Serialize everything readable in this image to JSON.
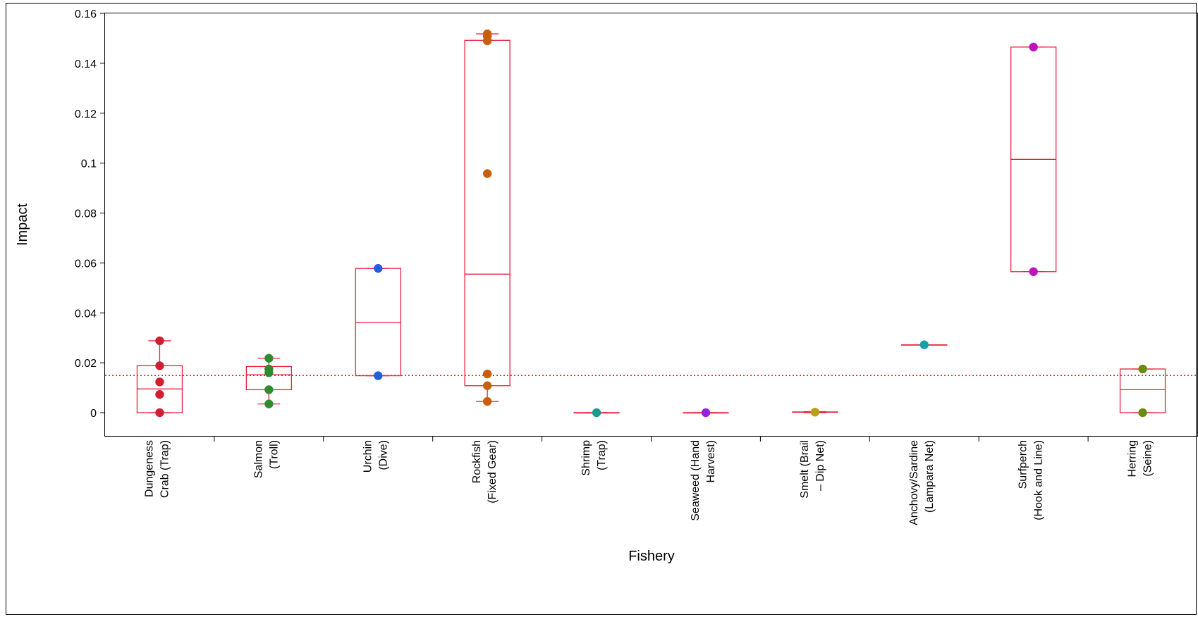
{
  "chart_data": {
    "type": "box",
    "xlabel": "Fishery",
    "ylabel": "Impact",
    "ylim": [
      -0.009,
      0.16
    ],
    "yticks": [
      0,
      0.02,
      0.04,
      0.06,
      0.08,
      0.1,
      0.12,
      0.14,
      0.16
    ],
    "ytick_labels": [
      "0",
      "0.02",
      "0.04",
      "0.06",
      "0.08",
      "0.1",
      "0.12",
      "0.14",
      "0.16"
    ],
    "reference_line": {
      "y": 0.0149,
      "color": "#e8202a",
      "style": "dotted"
    },
    "box_color": "#e8203c",
    "categories": [
      {
        "label": [
          "Dungeness",
          "Crab (Trap)"
        ],
        "color": "#d02030",
        "box": {
          "q1": 0.0,
          "median": 0.0095,
          "q3": 0.0188,
          "min": 0.0,
          "max": 0.0288
        },
        "points": [
          0.0288,
          0.0188,
          0.0123,
          0.0073,
          0.0
        ]
      },
      {
        "label": [
          "Salmon",
          "(Troll)"
        ],
        "color": "#2e8b2e",
        "box": {
          "q1": 0.0092,
          "median": 0.0152,
          "q3": 0.0185,
          "min": 0.0035,
          "max": 0.0218
        },
        "points": [
          0.0218,
          0.0175,
          0.016,
          0.0092,
          0.0035
        ]
      },
      {
        "label": [
          "Urchin",
          "(Dive)"
        ],
        "color": "#1f5fe0",
        "box": {
          "q1": 0.0148,
          "median": 0.0362,
          "q3": 0.0578,
          "min": 0.0148,
          "max": 0.0578
        },
        "points": [
          0.0578,
          0.0148
        ]
      },
      {
        "label": [
          "Rockfish",
          "(Fixed Gear)"
        ],
        "color": "#c8600a",
        "box": {
          "q1": 0.0108,
          "median": 0.0555,
          "q3": 0.1492,
          "min": 0.0045,
          "max": 0.1518
        },
        "points": [
          0.1518,
          0.1508,
          0.149,
          0.0958,
          0.0155,
          0.0108,
          0.0045
        ]
      },
      {
        "label": [
          "Shrimp",
          "(Trap)"
        ],
        "color": "#1a9a8a",
        "box": {
          "q1": 0.0,
          "median": 0.0,
          "q3": 0.0,
          "min": 0.0,
          "max": 0.0
        },
        "points": [
          0.0
        ]
      },
      {
        "label": [
          "Seaweed (Hand",
          "Harvest)"
        ],
        "color": "#9a20d8",
        "box": {
          "q1": 0.0,
          "median": 0.0,
          "q3": 0.0,
          "min": 0.0,
          "max": 0.0
        },
        "points": [
          0.0
        ]
      },
      {
        "label": [
          "Smelt (Brail",
          "– Dip Net)"
        ],
        "color": "#b8a010",
        "box": {
          "q1": 0.0002,
          "median": 0.0002,
          "q3": 0.0003,
          "min": 0.0,
          "max": 0.0004
        },
        "points": [
          0.0002
        ]
      },
      {
        "label": [
          "Anchovy/Sardine",
          "(Lampara Net)"
        ],
        "color": "#18a0a8",
        "box": {
          "q1": 0.0272,
          "median": 0.0272,
          "q3": 0.0272,
          "min": 0.0272,
          "max": 0.0272
        },
        "points": [
          0.0272
        ]
      },
      {
        "label": [
          "Surfperch",
          "(Hook and Line)"
        ],
        "color": "#c010c0",
        "box": {
          "q1": 0.0565,
          "median": 0.1015,
          "q3": 0.1465,
          "min": 0.0565,
          "max": 0.1465
        },
        "points": [
          0.1465,
          0.0565
        ]
      },
      {
        "label": [
          "Herring",
          "(Seine)"
        ],
        "color": "#6a8a10",
        "box": {
          "q1": 0.0,
          "median": 0.0092,
          "q3": 0.0175,
          "min": 0.0,
          "max": 0.0175
        },
        "points": [
          0.0175,
          0.0
        ]
      }
    ]
  }
}
